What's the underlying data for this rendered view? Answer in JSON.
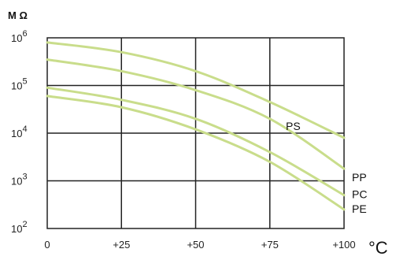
{
  "chart_data": {
    "type": "line",
    "ylabel": "M Ω",
    "xunit": "°C",
    "x": [
      0,
      25,
      50,
      75,
      100
    ],
    "xtick_labels": [
      "0",
      "+25",
      "+50",
      "+75",
      "+100"
    ],
    "ytick_labels": [
      {
        "value": 100,
        "base": "10",
        "exp": "2"
      },
      {
        "value": 1000,
        "base": "10",
        "exp": "3"
      },
      {
        "value": 10000,
        "base": "10",
        "exp": "4"
      },
      {
        "value": 100000,
        "base": "10",
        "exp": "5"
      },
      {
        "value": 1000000,
        "base": "10",
        "exp": "6"
      }
    ],
    "xlim": [
      0,
      100
    ],
    "ylim": [
      100,
      1000000
    ],
    "yscale": "log",
    "grid": true,
    "line_color": "#c9dd8b",
    "grid_color": "#222222",
    "series": [
      {
        "name": "PS",
        "x": [
          0,
          25,
          50,
          75,
          100
        ],
        "values": [
          800000,
          500000,
          200000,
          45000,
          8000
        ]
      },
      {
        "name": "PP",
        "x": [
          0,
          25,
          50,
          75,
          100
        ],
        "values": [
          350000,
          200000,
          80000,
          20000,
          1800
        ]
      },
      {
        "name": "PC",
        "x": [
          0,
          25,
          50,
          75,
          100
        ],
        "values": [
          90000,
          50000,
          20000,
          4000,
          500
        ]
      },
      {
        "name": "PE",
        "x": [
          0,
          25,
          50,
          75,
          100
        ],
        "values": [
          60000,
          35000,
          12000,
          2500,
          250
        ]
      }
    ]
  }
}
